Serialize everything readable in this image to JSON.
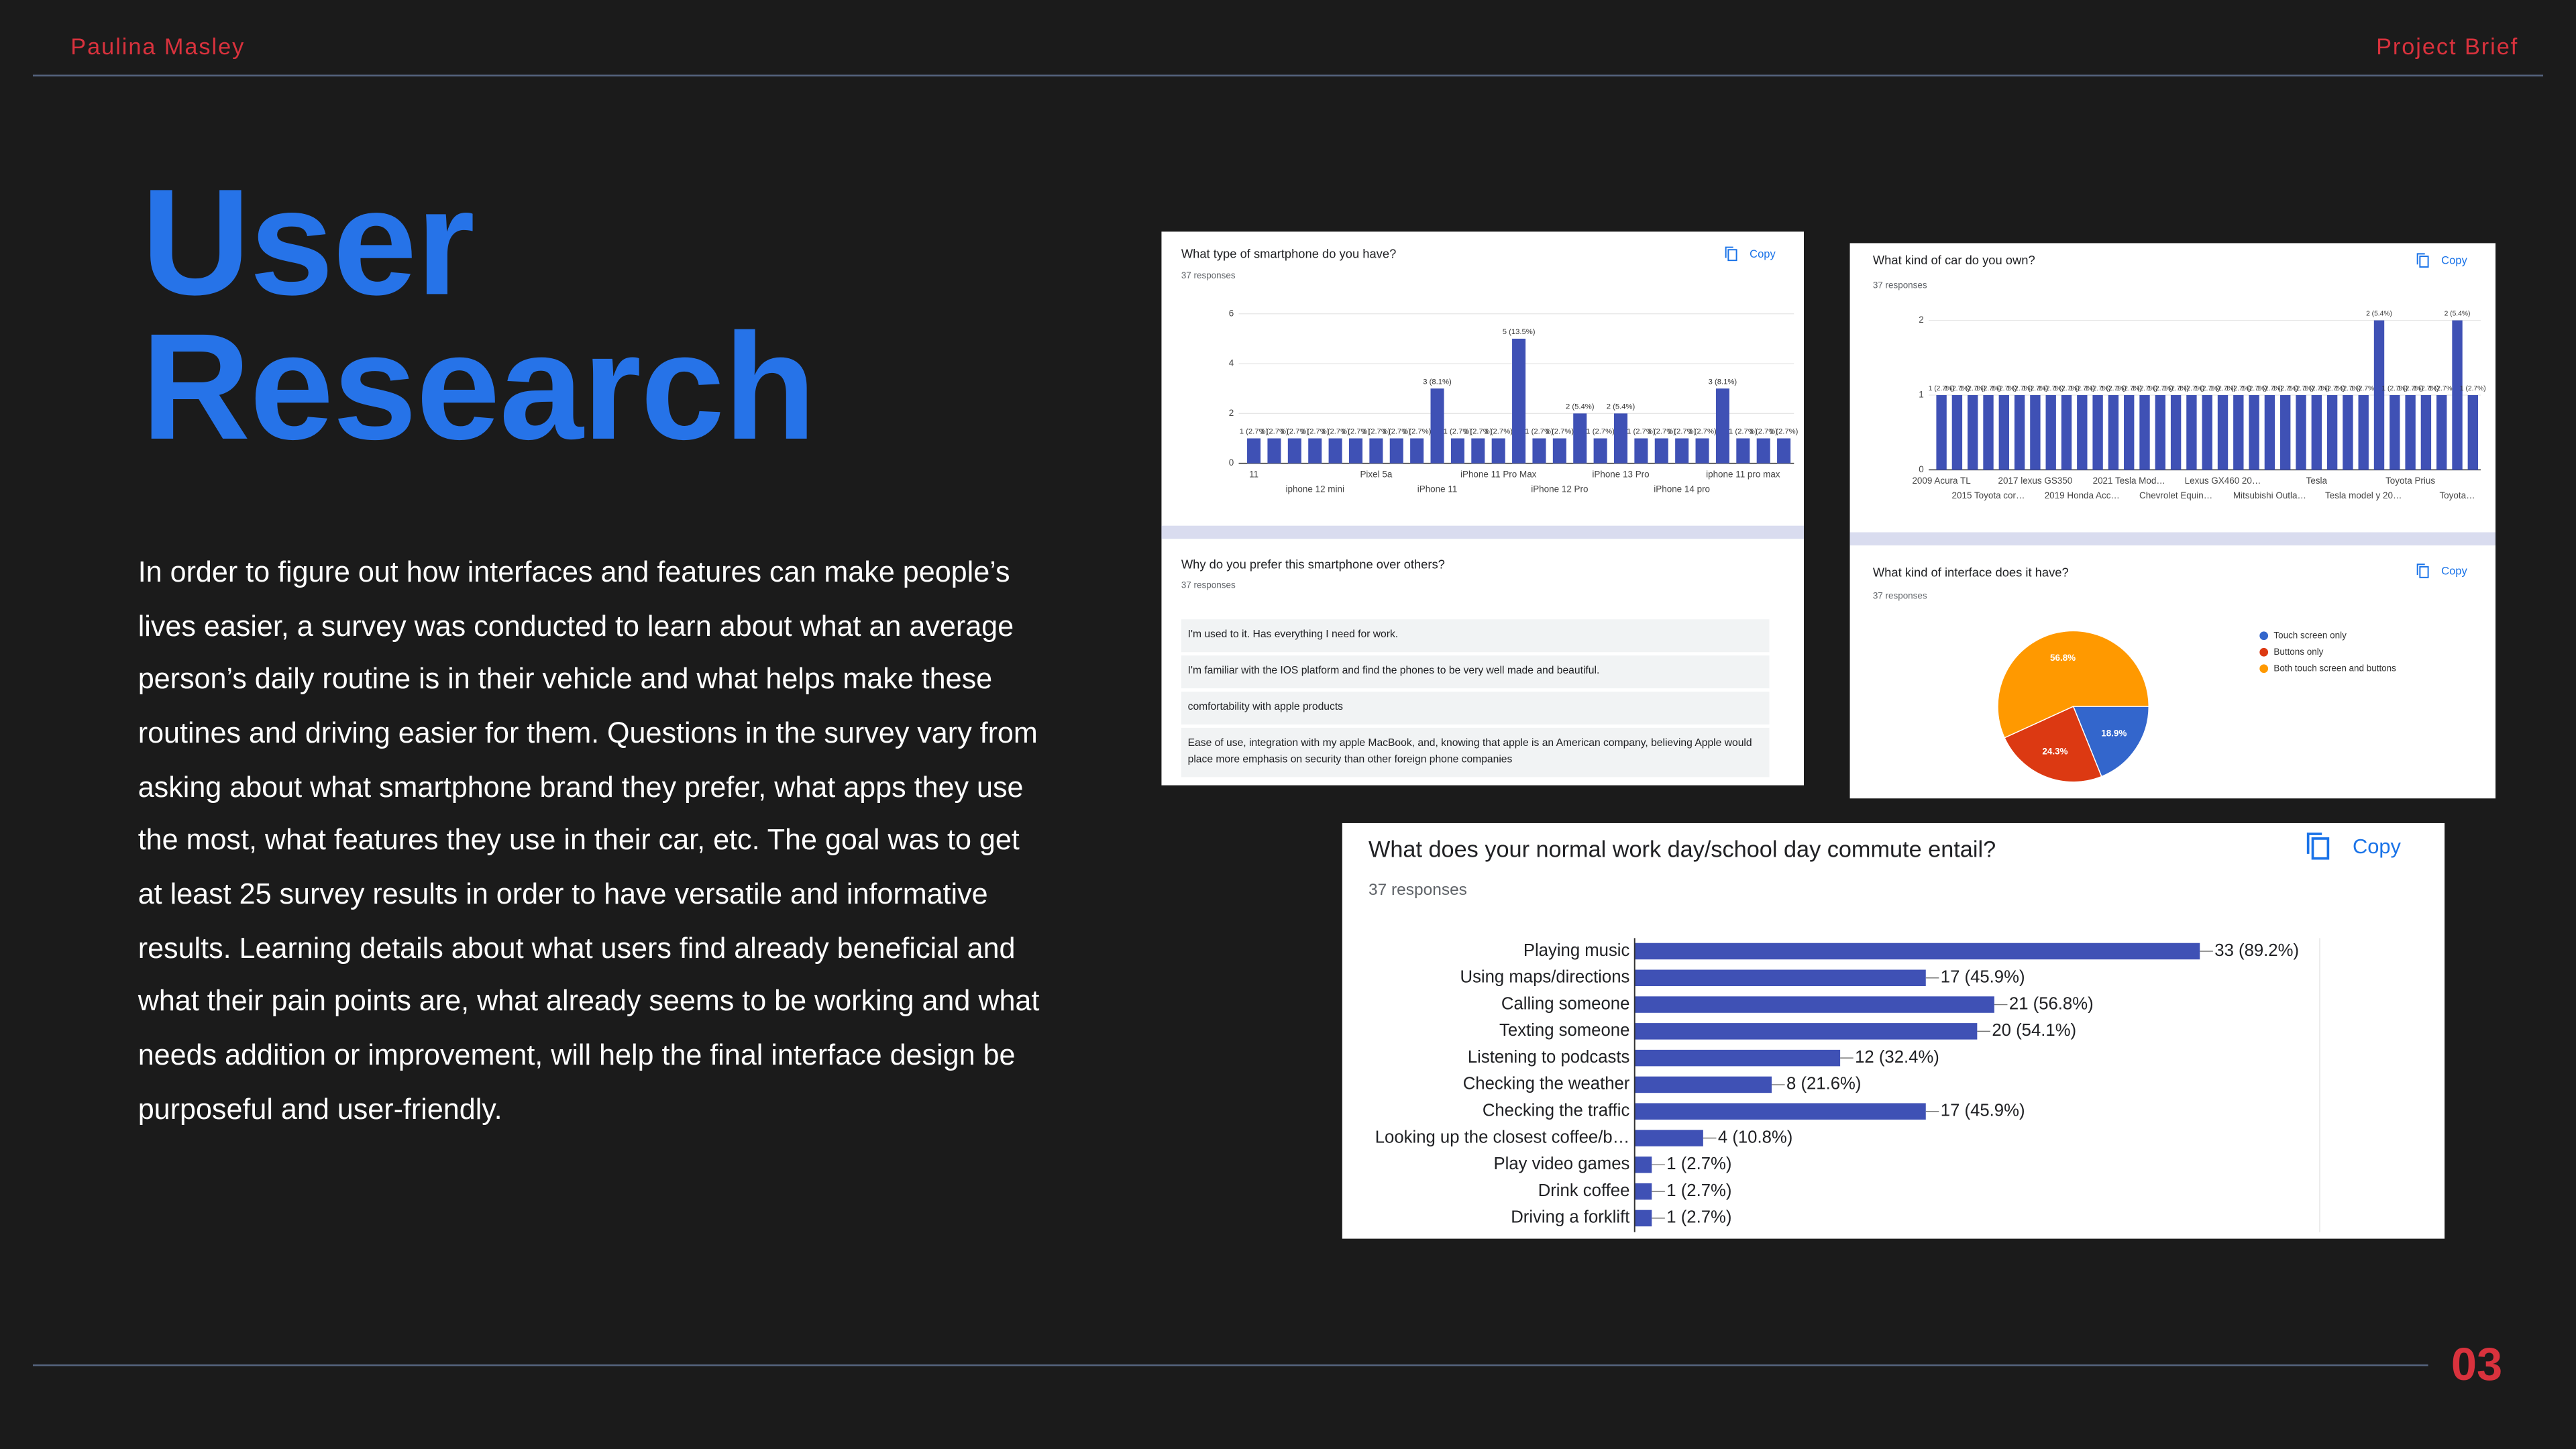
{
  "header": {
    "author": "Paulina Masley",
    "section": "Project Brief"
  },
  "title": [
    "User",
    "Research"
  ],
  "body": "In order to figure out how interfaces and features can make people’s lives easier, a survey was conducted to learn about what an average person’s daily routine is in their vehicle and what helps make these routines and driving easier for them. Questions in the survey vary from asking about what smartphone brand they prefer, what apps they use the most, what features they use in their car, etc. The goal was to get at least 25 survey results in order to have versatile and informative results. Learning details about what users find already beneficial and what their pain points are, what already seems to be working and what needs addition or improvement, will help the final interface design be purposeful and user-friendly.",
  "page_number": "03",
  "responses_card": {
    "title": "Why do you prefer this smartphone over others?",
    "subtitle": "37 responses",
    "responses": [
      "I'm used to it. Has everything I need for work.",
      "I'm familiar with the IOS platform and find the phones to be very well made and beautiful.",
      "comfortability with apple products",
      "Ease of use, integration with my apple MacBook, and, knowing that apple is an American company, believing Apple would place more emphasis on security than other foreign phone companies"
    ]
  },
  "chart_data": [
    {
      "type": "bar",
      "title": "What type of smartphone do you have?",
      "subtitle": "37 responses",
      "copy": "Copy",
      "categories": [
        "11",
        null,
        null,
        "iphone 12 mini",
        null,
        null,
        "Pixel 5a",
        null,
        null,
        "iPhone 11",
        null,
        null,
        "iPhone 11 Pro Max",
        null,
        null,
        "iPhone 12 Pro",
        null,
        null,
        "iPhone 13 Pro",
        null,
        null,
        "iPhone 14 pro",
        null,
        null,
        "iphone 11 pro max",
        null,
        null
      ],
      "values": [
        1,
        1,
        1,
        1,
        1,
        1,
        1,
        1,
        1,
        3,
        1,
        1,
        1,
        5,
        1,
        1,
        2,
        1,
        2,
        1,
        1,
        1,
        1,
        3,
        1,
        1,
        1
      ],
      "value_labels": [
        "1 (2.7%)",
        "1 (2.7%)",
        "1 (2.7%)",
        "1 (2.7%)",
        "1 (2.7%)",
        "1 (2.7%)",
        "1 (2.7%)",
        "1 (2.7%)",
        "1 (2.7%)",
        "3 (8.1%)",
        "1 (2.7%)",
        "1 (2.7%)",
        "1 (2.7%)",
        "5 (13.5%)",
        "1 (2.7%)",
        "1 (2.7%)",
        "2 (5.4%)",
        "1 (2.7%)",
        "2 (5.4%)",
        "1 (2.7%)",
        "1 (2.7%)",
        "1 (2.7%)",
        "1 (2.7%)",
        "3 (8.1%)",
        "1 (2.7%)",
        "1 (2.7%)",
        "1 (2.7%)"
      ],
      "ylim": [
        0,
        6
      ],
      "yticks": [
        0,
        2,
        4,
        6
      ],
      "grid": true,
      "color": "#3f51b5"
    },
    {
      "type": "bar",
      "title": "What kind of car do you own?",
      "subtitle": "37 responses",
      "copy": "Copy",
      "categories": [
        "2009 Acura TL",
        null,
        null,
        "2015 Toyota cor…",
        null,
        null,
        "2017 lexus GS350",
        null,
        null,
        "2019 Honda Acc…",
        null,
        null,
        "2021 Tesla Mod…",
        null,
        null,
        "Chevrolet Equin…",
        null,
        null,
        "Lexus GX460 20…",
        null,
        null,
        "Mitsubishi Outla…",
        null,
        null,
        "Tesla",
        null,
        null,
        "Tesla model y 20…",
        null,
        null,
        "Toyota Prius",
        null,
        null,
        "Toyota…",
        null
      ],
      "values": [
        1,
        1,
        1,
        1,
        1,
        1,
        1,
        1,
        1,
        1,
        1,
        1,
        1,
        1,
        1,
        1,
        1,
        1,
        1,
        1,
        1,
        1,
        1,
        1,
        1,
        1,
        1,
        1,
        2,
        1,
        1,
        1,
        1,
        2,
        1
      ],
      "value_labels": [
        "1 (2.7%)",
        "1 (2.7%)",
        "1 (2.7%)",
        "1 (2.7%)",
        "1 (2.7%)",
        "1 (2.7%)",
        "1 (2.7%)",
        "1 (2.7%)",
        "1 (2.7%)",
        "1 (2.7%)",
        "1 (2.7%)",
        "1 (2.7%)",
        "1 (2.7%)",
        "1 (2.7%)",
        "1 (2.7%)",
        "1 (2.7%)",
        "1 (2.7%)",
        "1 (2.7%)",
        "1 (2.7%)",
        "1 (2.7%)",
        "1 (2.7%)",
        "1 (2.7%)",
        "1 (2.7%)",
        "1 (2.7%)",
        "1 (2.7%)",
        "1 (2.7%)",
        "1 (2.7%)",
        "1 (2.7%)",
        "2 (5.4%)",
        "1 (2.7%)",
        "1 (2.7%)",
        "1 (2.7%)",
        "1 (2.7%)",
        "2 (5.4%)",
        "1 (2.7%)"
      ],
      "ylim": [
        0,
        2
      ],
      "yticks": [
        0,
        1,
        2
      ],
      "grid": true,
      "color": "#3f51b5"
    },
    {
      "type": "pie",
      "title": "What kind of interface does it have?",
      "subtitle": "37 responses",
      "copy": "Copy",
      "categories": [
        "Touch screen only",
        "Buttons only",
        "Both touch screen and buttons"
      ],
      "values": [
        18.9,
        24.3,
        56.8
      ],
      "value_labels": [
        "18.9%",
        "24.3%",
        "56.8%"
      ],
      "colors": [
        "#3366cc",
        "#dc3912",
        "#ff9900"
      ]
    },
    {
      "type": "hbar",
      "title": "What does your normal work day/school day commute entail?",
      "subtitle": "37 responses",
      "copy": "Copy",
      "categories": [
        "Playing music",
        "Using maps/directions",
        "Calling someone",
        "Texting someone",
        "Listening to podcasts",
        "Checking the weather",
        "Checking the traffic",
        "Looking up the closest coffee/b…",
        "Play video games",
        "Drink coffee",
        "Driving a forklift"
      ],
      "values": [
        33,
        17,
        21,
        20,
        12,
        8,
        17,
        4,
        1,
        1,
        1
      ],
      "value_labels": [
        "33 (89.2%)",
        "17 (45.9%)",
        "21 (56.8%)",
        "20 (54.1%)",
        "12 (32.4%)",
        "8 (21.6%)",
        "17 (45.9%)",
        "4 (10.8%)",
        "1 (2.7%)",
        "1 (2.7%)",
        "1 (2.7%)"
      ],
      "xlim": [
        0,
        40
      ],
      "color": "#3f51b5"
    }
  ]
}
